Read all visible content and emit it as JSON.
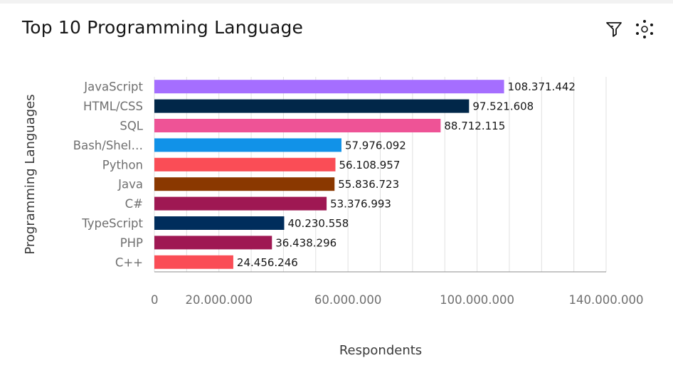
{
  "header": {
    "title": "Top 10 Programming Language",
    "icons": [
      "filter-icon",
      "settings-icon"
    ]
  },
  "chart_data": {
    "type": "bar",
    "orientation": "horizontal",
    "title": "Top 10 Programming Language",
    "xlabel": "Respondents",
    "ylabel": "Programming Languages",
    "xlim": [
      0,
      140000000
    ],
    "x_ticks": [
      0,
      20000000,
      60000000,
      100000000,
      140000000
    ],
    "x_tick_labels": [
      "0",
      "20.000.000",
      "60.000.000",
      "100.000.000",
      "140.000.000"
    ],
    "grid": true,
    "categories": [
      "JavaScript",
      "HTML/CSS",
      "SQL",
      "Bash/Shel…",
      "Python",
      "Java",
      "C#",
      "TypeScript",
      "PHP",
      "C++"
    ],
    "values": [
      108371442,
      97521608,
      88712115,
      57976092,
      56108957,
      55836723,
      53376993,
      40230558,
      36438296,
      24456246
    ],
    "value_labels": [
      "108.371.442",
      "97.521.608",
      "88.712.115",
      "57.976.092",
      "56.108.957",
      "55.836.723",
      "53.376.993",
      "40.230.558",
      "36.438.296",
      "24.456.246"
    ],
    "colors": [
      "#a56eff",
      "#012749",
      "#ee5396",
      "#1192e8",
      "#fa4d56",
      "#8a3800",
      "#9f1853",
      "#002d5c",
      "#9f1853",
      "#fa4d56"
    ]
  }
}
